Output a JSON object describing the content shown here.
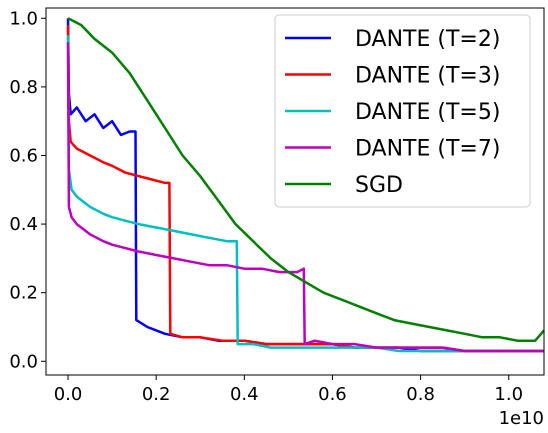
{
  "chart_data": {
    "type": "line",
    "title": "",
    "xlabel": "",
    "ylabel": "",
    "x_offset_label": "1e10",
    "xlim": [
      -0.05,
      1.08
    ],
    "ylim": [
      -0.04,
      1.03
    ],
    "x_ticks": [
      0.0,
      0.2,
      0.4,
      0.6,
      0.8,
      1.0
    ],
    "x_tick_labels": [
      "0.0",
      "0.2",
      "0.4",
      "0.6",
      "0.8",
      "1.0"
    ],
    "y_ticks": [
      0.0,
      0.2,
      0.4,
      0.6,
      0.8,
      1.0
    ],
    "y_tick_labels": [
      "0.0",
      "0.2",
      "0.4",
      "0.6",
      "0.8",
      "1.0"
    ],
    "grid": false,
    "legend_position": "top-right",
    "series": [
      {
        "name": "DANTE (T=2)",
        "color": "#0000ff",
        "points": [
          [
            0.0,
            1.0
          ],
          [
            0.002,
            0.78
          ],
          [
            0.006,
            0.72
          ],
          [
            0.02,
            0.74
          ],
          [
            0.04,
            0.7
          ],
          [
            0.06,
            0.72
          ],
          [
            0.08,
            0.68
          ],
          [
            0.1,
            0.7
          ],
          [
            0.12,
            0.66
          ],
          [
            0.14,
            0.67
          ],
          [
            0.153,
            0.67
          ],
          [
            0.155,
            0.12
          ],
          [
            0.18,
            0.1
          ],
          [
            0.22,
            0.08
          ],
          [
            0.26,
            0.07
          ],
          [
            0.3,
            0.07
          ],
          [
            0.34,
            0.06
          ],
          [
            0.4,
            0.06
          ],
          [
            0.45,
            0.05
          ],
          [
            0.5,
            0.05
          ],
          [
            0.55,
            0.05
          ],
          [
            0.6,
            0.05
          ],
          [
            0.65,
            0.04
          ],
          [
            0.7,
            0.04
          ],
          [
            0.75,
            0.04
          ],
          [
            0.8,
            0.03
          ],
          [
            0.85,
            0.03
          ],
          [
            0.9,
            0.03
          ],
          [
            0.95,
            0.03
          ],
          [
            1.0,
            0.03
          ],
          [
            1.08,
            0.03
          ]
        ]
      },
      {
        "name": "DANTE (T=3)",
        "color": "#ff0000",
        "points": [
          [
            0.0,
            0.98
          ],
          [
            0.002,
            0.7
          ],
          [
            0.006,
            0.64
          ],
          [
            0.02,
            0.62
          ],
          [
            0.05,
            0.6
          ],
          [
            0.08,
            0.58
          ],
          [
            0.1,
            0.57
          ],
          [
            0.13,
            0.55
          ],
          [
            0.16,
            0.54
          ],
          [
            0.19,
            0.53
          ],
          [
            0.22,
            0.52
          ],
          [
            0.23,
            0.52
          ],
          [
            0.232,
            0.08
          ],
          [
            0.26,
            0.07
          ],
          [
            0.3,
            0.07
          ],
          [
            0.35,
            0.06
          ],
          [
            0.4,
            0.06
          ],
          [
            0.45,
            0.05
          ],
          [
            0.5,
            0.05
          ],
          [
            0.55,
            0.05
          ],
          [
            0.6,
            0.05
          ],
          [
            0.65,
            0.04
          ],
          [
            0.7,
            0.04
          ],
          [
            0.75,
            0.04
          ],
          [
            0.8,
            0.04
          ],
          [
            0.85,
            0.04
          ],
          [
            0.9,
            0.03
          ],
          [
            0.95,
            0.03
          ],
          [
            1.0,
            0.03
          ],
          [
            1.08,
            0.03
          ]
        ]
      },
      {
        "name": "DANTE (T=5)",
        "color": "#00bfbf",
        "points": [
          [
            0.0,
            0.95
          ],
          [
            0.002,
            0.56
          ],
          [
            0.008,
            0.5
          ],
          [
            0.02,
            0.48
          ],
          [
            0.05,
            0.45
          ],
          [
            0.08,
            0.43
          ],
          [
            0.1,
            0.42
          ],
          [
            0.13,
            0.41
          ],
          [
            0.16,
            0.4
          ],
          [
            0.2,
            0.39
          ],
          [
            0.24,
            0.38
          ],
          [
            0.28,
            0.37
          ],
          [
            0.32,
            0.36
          ],
          [
            0.36,
            0.35
          ],
          [
            0.383,
            0.35
          ],
          [
            0.385,
            0.05
          ],
          [
            0.42,
            0.05
          ],
          [
            0.46,
            0.04
          ],
          [
            0.5,
            0.04
          ],
          [
            0.55,
            0.04
          ],
          [
            0.6,
            0.04
          ],
          [
            0.65,
            0.04
          ],
          [
            0.7,
            0.04
          ],
          [
            0.75,
            0.03
          ],
          [
            0.8,
            0.03
          ],
          [
            0.85,
            0.03
          ],
          [
            0.9,
            0.03
          ],
          [
            0.95,
            0.03
          ],
          [
            1.0,
            0.03
          ],
          [
            1.08,
            0.03
          ]
        ]
      },
      {
        "name": "DANTE (T=7)",
        "color": "#bf00bf",
        "points": [
          [
            0.0,
            0.93
          ],
          [
            0.002,
            0.45
          ],
          [
            0.008,
            0.42
          ],
          [
            0.02,
            0.4
          ],
          [
            0.05,
            0.37
          ],
          [
            0.08,
            0.35
          ],
          [
            0.1,
            0.34
          ],
          [
            0.13,
            0.33
          ],
          [
            0.16,
            0.32
          ],
          [
            0.2,
            0.31
          ],
          [
            0.24,
            0.3
          ],
          [
            0.28,
            0.29
          ],
          [
            0.32,
            0.28
          ],
          [
            0.36,
            0.28
          ],
          [
            0.4,
            0.27
          ],
          [
            0.44,
            0.27
          ],
          [
            0.48,
            0.26
          ],
          [
            0.52,
            0.26
          ],
          [
            0.535,
            0.27
          ],
          [
            0.537,
            0.05
          ],
          [
            0.56,
            0.06
          ],
          [
            0.6,
            0.05
          ],
          [
            0.65,
            0.05
          ],
          [
            0.7,
            0.04
          ],
          [
            0.75,
            0.04
          ],
          [
            0.8,
            0.04
          ],
          [
            0.85,
            0.04
          ],
          [
            0.9,
            0.03
          ],
          [
            0.95,
            0.03
          ],
          [
            1.0,
            0.03
          ],
          [
            1.08,
            0.03
          ]
        ]
      },
      {
        "name": "SGD",
        "color": "#008000",
        "points": [
          [
            0.0,
            1.0
          ],
          [
            0.03,
            0.98
          ],
          [
            0.06,
            0.94
          ],
          [
            0.1,
            0.9
          ],
          [
            0.14,
            0.84
          ],
          [
            0.18,
            0.76
          ],
          [
            0.22,
            0.68
          ],
          [
            0.26,
            0.6
          ],
          [
            0.3,
            0.54
          ],
          [
            0.34,
            0.47
          ],
          [
            0.38,
            0.4
          ],
          [
            0.42,
            0.35
          ],
          [
            0.46,
            0.3
          ],
          [
            0.5,
            0.26
          ],
          [
            0.54,
            0.23
          ],
          [
            0.58,
            0.2
          ],
          [
            0.62,
            0.18
          ],
          [
            0.66,
            0.16
          ],
          [
            0.7,
            0.14
          ],
          [
            0.74,
            0.12
          ],
          [
            0.78,
            0.11
          ],
          [
            0.82,
            0.1
          ],
          [
            0.86,
            0.09
          ],
          [
            0.9,
            0.08
          ],
          [
            0.94,
            0.07
          ],
          [
            0.98,
            0.07
          ],
          [
            1.02,
            0.06
          ],
          [
            1.06,
            0.06
          ],
          [
            1.08,
            0.09
          ]
        ]
      }
    ]
  }
}
